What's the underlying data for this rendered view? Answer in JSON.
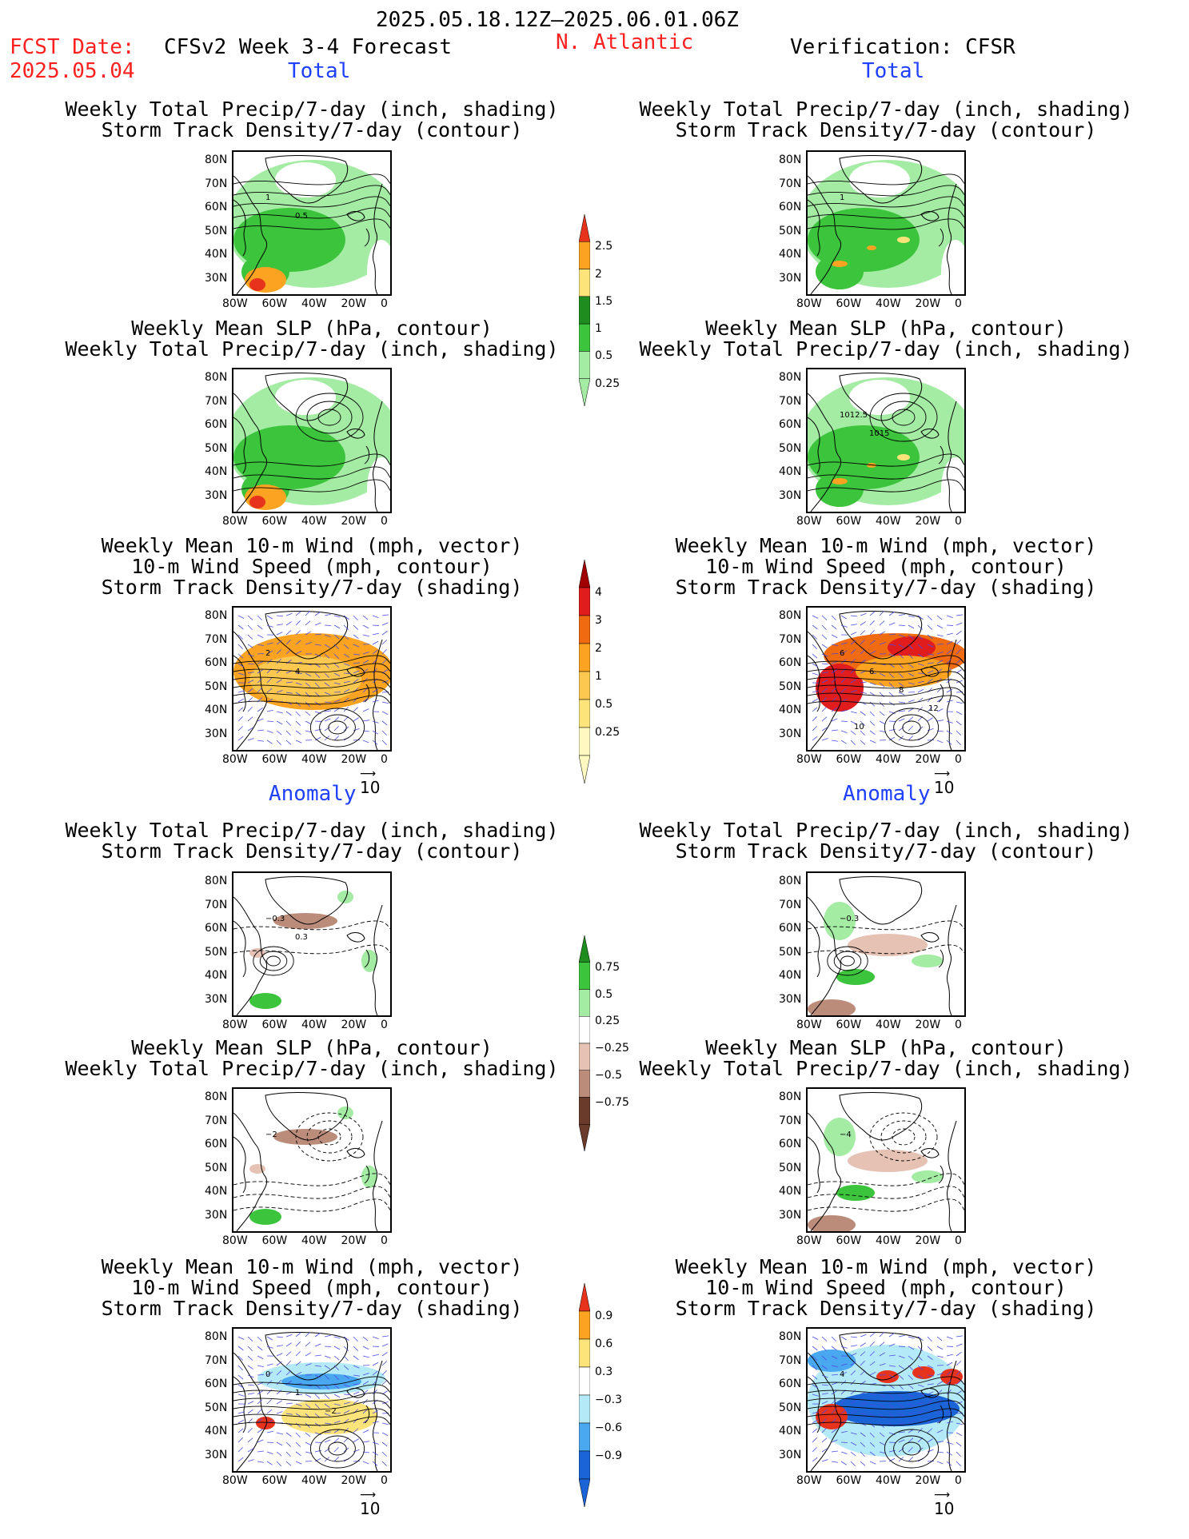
{
  "header": {
    "date_range": "2025.05.18.12Z–2025.06.01.06Z",
    "fcst_label": "FCST Date:",
    "fcst_date": "2025.05.04",
    "model_title": "CFSv2 Week 3-4 Forecast",
    "region": "N. Atlantic",
    "verification": "Verification: CFSR"
  },
  "sections": {
    "total": "Total",
    "anomaly": "Anomaly"
  },
  "titles": {
    "precip_storm": [
      "Weekly Total Precip/7-day (inch, shading)",
      "Storm Track Density/7-day (contour)"
    ],
    "slp_precip": [
      "Weekly Mean SLP (hPa, contour)",
      "Weekly Total Precip/7-day (inch, shading)"
    ],
    "wind": [
      "Weekly Mean 10-m Wind (mph, vector)",
      "10-m Wind Speed (mph, contour)",
      "Storm Track Density/7-day (shading)"
    ]
  },
  "axes": {
    "lat_ticks": [
      "80N",
      "70N",
      "60N",
      "50N",
      "40N",
      "30N"
    ],
    "lon_ticks": [
      "80W",
      "60W",
      "40W",
      "20W",
      "0"
    ]
  },
  "vector_ref": "10",
  "colorbars": {
    "precip_total": {
      "labels": [
        "2.5",
        "2",
        "1.5",
        "1",
        "0.5",
        "0.25"
      ],
      "colors": [
        "#e8331c",
        "#fca421",
        "#fde47a",
        "#1e8c1e",
        "#3cc43c",
        "#a4eba4"
      ]
    },
    "storm_total": {
      "labels": [
        "4",
        "3",
        "2",
        "1",
        "0.5",
        "0.25"
      ],
      "colors": [
        "#a00000",
        "#e01c1c",
        "#f06a10",
        "#fca421",
        "#fdc850",
        "#fde47a",
        "#fff8c0"
      ]
    },
    "precip_anom": {
      "labels": [
        "0.75",
        "0.5",
        "0.25",
        "−0.25",
        "−0.5",
        "−0.75"
      ],
      "colors": [
        "#1e8c1e",
        "#3cc43c",
        "#a4eba4",
        "#ffffff",
        "#e6c2b4",
        "#bc8c7a",
        "#6a3a2a"
      ]
    },
    "storm_anom": {
      "labels": [
        "0.9",
        "0.6",
        "0.3",
        "−0.3",
        "−0.6",
        "−0.9"
      ],
      "colors": [
        "#e8331c",
        "#fca421",
        "#fde47a",
        "#ffffff",
        "#b4eaf8",
        "#4aa8f0",
        "#1a64d8"
      ]
    }
  },
  "panel_labels": {
    "p1": [
      "1",
      "0.5"
    ],
    "p2": [
      "1"
    ],
    "p4": [
      "1012.5",
      "1015"
    ],
    "p5": [
      "2",
      "4"
    ],
    "p6": [
      "6",
      "6",
      "8",
      "12",
      "10"
    ],
    "p7": [
      "−0.3",
      "0.3"
    ],
    "p8": [
      "−0.3"
    ],
    "p9": [
      "−2"
    ],
    "p10": [
      "−4"
    ],
    "p11": [
      "0",
      "1",
      "−2"
    ],
    "p12": [
      "4"
    ]
  }
}
